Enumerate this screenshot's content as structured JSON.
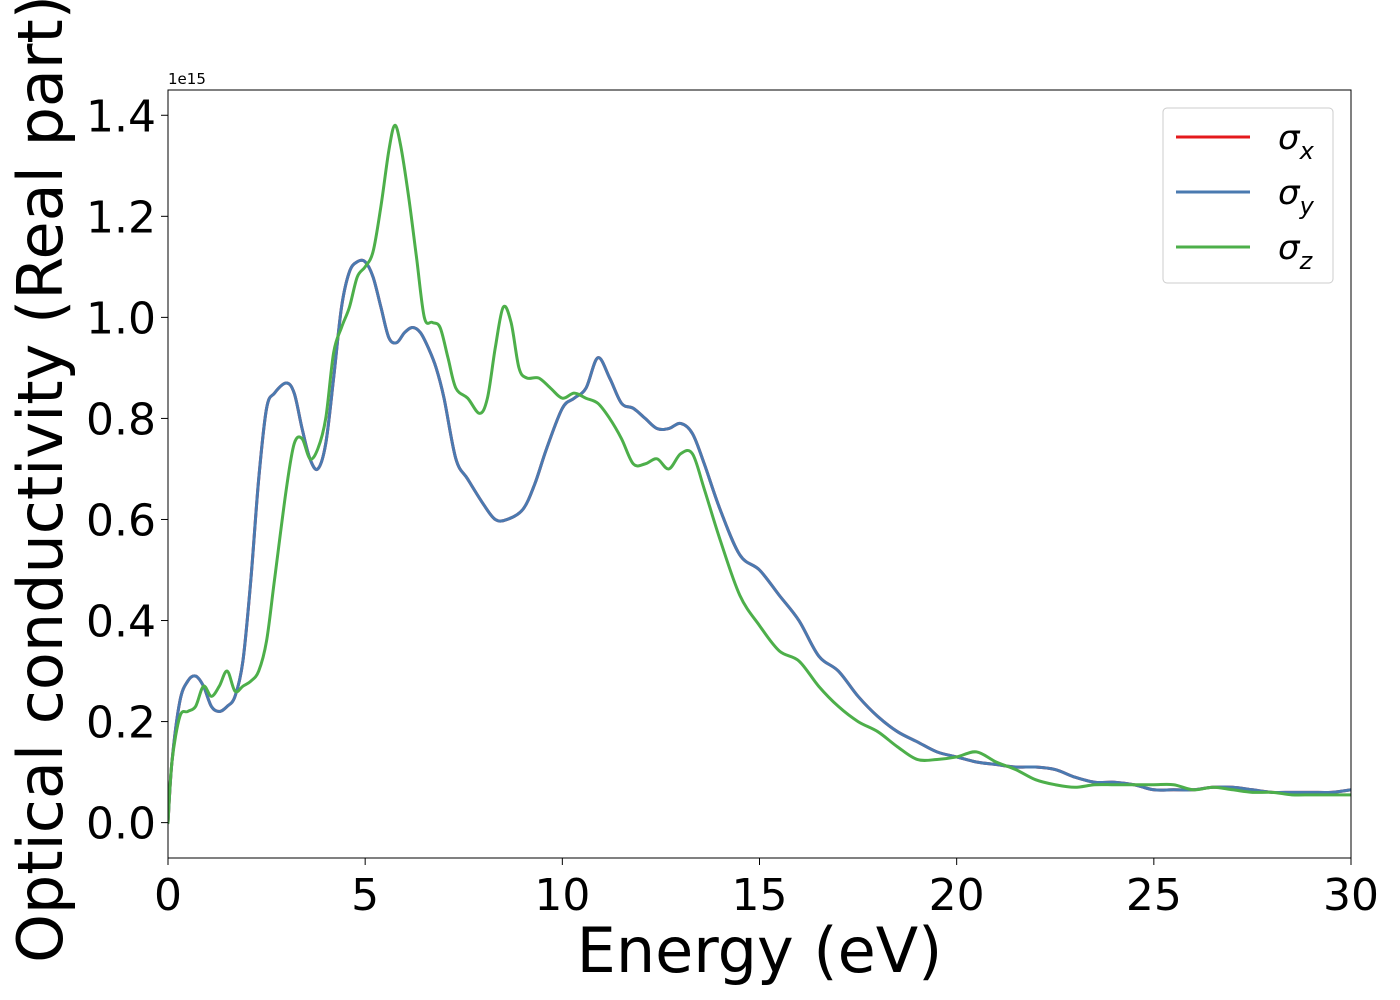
{
  "chart_data": {
    "type": "line",
    "xlabel": "Energy (eV)",
    "ylabel": "Optical conductivity (Real part)",
    "y_offset_label": "1e15",
    "xlim": [
      0,
      30
    ],
    "ylim": [
      -0.07,
      1.45
    ],
    "xticks": [
      0,
      5,
      10,
      15,
      20,
      25,
      30
    ],
    "xtick_labels": [
      "0",
      "5",
      "10",
      "15",
      "20",
      "25",
      "30"
    ],
    "yticks": [
      0.0,
      0.2,
      0.4,
      0.6,
      0.8,
      1.0,
      1.2,
      1.4
    ],
    "ytick_labels": [
      "0.0",
      "0.2",
      "0.4",
      "0.6",
      "0.8",
      "1.0",
      "1.2",
      "1.4"
    ],
    "grid": false,
    "legend_position": "top-right",
    "series": [
      {
        "name": "σ_x",
        "symbol": "σ",
        "subscript": "x",
        "color": "#e41a1c",
        "x": [
          0,
          0.1,
          0.3,
          0.5,
          0.7,
          0.9,
          1.1,
          1.3,
          1.5,
          1.7,
          1.9,
          2.1,
          2.3,
          2.5,
          2.7,
          3.0,
          3.2,
          3.4,
          3.6,
          3.8,
          4.0,
          4.2,
          4.4,
          4.6,
          4.8,
          5.0,
          5.2,
          5.4,
          5.6,
          5.8,
          6.0,
          6.2,
          6.4,
          6.6,
          6.8,
          7.0,
          7.3,
          7.6,
          8.0,
          8.3,
          8.6,
          9.0,
          9.3,
          9.6,
          10.0,
          10.3,
          10.6,
          10.9,
          11.2,
          11.5,
          11.8,
          12.1,
          12.4,
          12.7,
          13.0,
          13.3,
          13.6,
          14.0,
          14.5,
          15.0,
          15.5,
          16.0,
          16.5,
          17.0,
          17.5,
          18.0,
          18.5,
          19.0,
          19.5,
          20.0,
          20.5,
          21.0,
          21.5,
          22.0,
          22.5,
          23.0,
          23.5,
          24.0,
          24.5,
          25.0,
          25.5,
          26.0,
          26.5,
          27.0,
          27.5,
          28.0,
          28.5,
          29.0,
          29.5,
          30.0
        ],
        "values": [
          0.0,
          0.12,
          0.24,
          0.28,
          0.29,
          0.27,
          0.23,
          0.22,
          0.23,
          0.25,
          0.32,
          0.48,
          0.68,
          0.82,
          0.85,
          0.87,
          0.85,
          0.78,
          0.72,
          0.7,
          0.75,
          0.88,
          1.02,
          1.09,
          1.11,
          1.11,
          1.08,
          1.02,
          0.96,
          0.95,
          0.97,
          0.98,
          0.97,
          0.94,
          0.9,
          0.84,
          0.72,
          0.68,
          0.63,
          0.6,
          0.6,
          0.62,
          0.67,
          0.74,
          0.82,
          0.84,
          0.86,
          0.92,
          0.88,
          0.83,
          0.82,
          0.8,
          0.78,
          0.78,
          0.79,
          0.77,
          0.71,
          0.62,
          0.53,
          0.5,
          0.45,
          0.4,
          0.33,
          0.3,
          0.25,
          0.21,
          0.18,
          0.16,
          0.14,
          0.13,
          0.12,
          0.115,
          0.11,
          0.11,
          0.105,
          0.09,
          0.08,
          0.08,
          0.075,
          0.065,
          0.065,
          0.065,
          0.07,
          0.07,
          0.065,
          0.06,
          0.06,
          0.06,
          0.06,
          0.065
        ]
      },
      {
        "name": "σ_y",
        "symbol": "σ",
        "subscript": "y",
        "color": "#4a7ab0",
        "x": [
          0,
          0.1,
          0.3,
          0.5,
          0.7,
          0.9,
          1.1,
          1.3,
          1.5,
          1.7,
          1.9,
          2.1,
          2.3,
          2.5,
          2.7,
          3.0,
          3.2,
          3.4,
          3.6,
          3.8,
          4.0,
          4.2,
          4.4,
          4.6,
          4.8,
          5.0,
          5.2,
          5.4,
          5.6,
          5.8,
          6.0,
          6.2,
          6.4,
          6.6,
          6.8,
          7.0,
          7.3,
          7.6,
          8.0,
          8.3,
          8.6,
          9.0,
          9.3,
          9.6,
          10.0,
          10.3,
          10.6,
          10.9,
          11.2,
          11.5,
          11.8,
          12.1,
          12.4,
          12.7,
          13.0,
          13.3,
          13.6,
          14.0,
          14.5,
          15.0,
          15.5,
          16.0,
          16.5,
          17.0,
          17.5,
          18.0,
          18.5,
          19.0,
          19.5,
          20.0,
          20.5,
          21.0,
          21.5,
          22.0,
          22.5,
          23.0,
          23.5,
          24.0,
          24.5,
          25.0,
          25.5,
          26.0,
          26.5,
          27.0,
          27.5,
          28.0,
          28.5,
          29.0,
          29.5,
          30.0
        ],
        "values": [
          0.0,
          0.12,
          0.24,
          0.28,
          0.29,
          0.27,
          0.23,
          0.22,
          0.23,
          0.25,
          0.32,
          0.48,
          0.68,
          0.82,
          0.85,
          0.87,
          0.85,
          0.78,
          0.72,
          0.7,
          0.75,
          0.88,
          1.02,
          1.09,
          1.11,
          1.11,
          1.08,
          1.02,
          0.96,
          0.95,
          0.97,
          0.98,
          0.97,
          0.94,
          0.9,
          0.84,
          0.72,
          0.68,
          0.63,
          0.6,
          0.6,
          0.62,
          0.67,
          0.74,
          0.82,
          0.84,
          0.86,
          0.92,
          0.88,
          0.83,
          0.82,
          0.8,
          0.78,
          0.78,
          0.79,
          0.77,
          0.71,
          0.62,
          0.53,
          0.5,
          0.45,
          0.4,
          0.33,
          0.3,
          0.25,
          0.21,
          0.18,
          0.16,
          0.14,
          0.13,
          0.12,
          0.115,
          0.11,
          0.11,
          0.105,
          0.09,
          0.08,
          0.08,
          0.075,
          0.065,
          0.065,
          0.065,
          0.07,
          0.07,
          0.065,
          0.06,
          0.06,
          0.06,
          0.06,
          0.065
        ]
      },
      {
        "name": "σ_z",
        "symbol": "σ",
        "subscript": "z",
        "color": "#4daf4a",
        "x": [
          0,
          0.1,
          0.3,
          0.5,
          0.7,
          0.9,
          1.1,
          1.3,
          1.5,
          1.7,
          1.9,
          2.1,
          2.3,
          2.5,
          2.7,
          3.0,
          3.2,
          3.4,
          3.6,
          3.8,
          4.0,
          4.2,
          4.4,
          4.6,
          4.8,
          5.0,
          5.2,
          5.4,
          5.6,
          5.75,
          5.9,
          6.1,
          6.3,
          6.5,
          6.7,
          6.9,
          7.1,
          7.3,
          7.6,
          7.9,
          8.1,
          8.3,
          8.5,
          8.7,
          8.9,
          9.1,
          9.4,
          9.7,
          10.0,
          10.3,
          10.6,
          10.9,
          11.2,
          11.5,
          11.8,
          12.1,
          12.4,
          12.7,
          13.0,
          13.3,
          13.6,
          14.0,
          14.5,
          15.0,
          15.5,
          16.0,
          16.5,
          17.0,
          17.5,
          18.0,
          18.5,
          19.0,
          19.5,
          20.0,
          20.5,
          21.0,
          21.5,
          22.0,
          22.5,
          23.0,
          23.5,
          24.0,
          24.5,
          25.0,
          25.5,
          26.0,
          26.5,
          27.0,
          27.5,
          28.0,
          28.5,
          29.0,
          29.5,
          30.0
        ],
        "values": [
          0.0,
          0.12,
          0.21,
          0.22,
          0.23,
          0.27,
          0.25,
          0.27,
          0.3,
          0.26,
          0.27,
          0.28,
          0.3,
          0.36,
          0.48,
          0.66,
          0.75,
          0.76,
          0.72,
          0.74,
          0.8,
          0.93,
          0.98,
          1.02,
          1.08,
          1.1,
          1.13,
          1.22,
          1.33,
          1.38,
          1.34,
          1.24,
          1.12,
          1.0,
          0.99,
          0.98,
          0.92,
          0.86,
          0.84,
          0.81,
          0.84,
          0.94,
          1.02,
          0.99,
          0.9,
          0.88,
          0.88,
          0.86,
          0.84,
          0.85,
          0.84,
          0.83,
          0.8,
          0.76,
          0.71,
          0.71,
          0.72,
          0.7,
          0.73,
          0.73,
          0.66,
          0.56,
          0.45,
          0.39,
          0.34,
          0.32,
          0.27,
          0.23,
          0.2,
          0.18,
          0.15,
          0.125,
          0.125,
          0.13,
          0.14,
          0.12,
          0.105,
          0.085,
          0.075,
          0.07,
          0.075,
          0.075,
          0.075,
          0.075,
          0.075,
          0.065,
          0.07,
          0.065,
          0.06,
          0.06,
          0.055,
          0.055,
          0.055,
          0.055
        ]
      }
    ]
  }
}
